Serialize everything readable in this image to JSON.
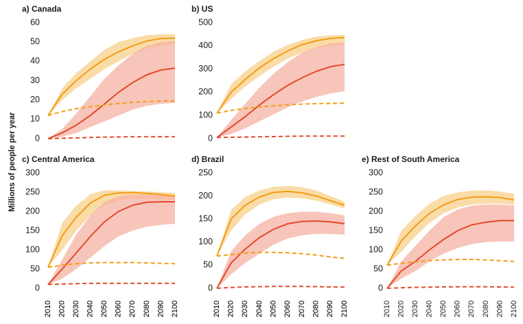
{
  "ylabel": "Millions of people per year",
  "colors": {
    "orange": "#f39c12",
    "orange_band": "#f8d08b",
    "red": "#e14a2a",
    "red_band": "#f6b2a3"
  },
  "chart_data": [
    {
      "type": "line",
      "title": "a) Canada",
      "x": [
        2010,
        2020,
        2030,
        2040,
        2050,
        2060,
        2070,
        2080,
        2090,
        2100
      ],
      "ylim": [
        0,
        60
      ],
      "yticks": [
        0,
        10,
        20,
        30,
        40,
        50,
        60
      ],
      "series": [
        {
          "style": "orange_solid",
          "values": [
            12,
            23,
            30,
            36,
            41,
            45,
            48,
            50.5,
            51.8,
            52
          ],
          "band_lo": [
            12,
            20,
            26,
            31,
            36,
            40,
            44,
            46.5,
            48,
            49
          ],
          "band_hi": [
            12,
            26,
            34,
            40,
            46,
            50,
            52,
            53.5,
            54,
            54
          ]
        },
        {
          "style": "red_solid",
          "values": [
            0,
            3,
            7,
            12,
            18,
            24,
            29,
            33,
            35.5,
            36.5
          ],
          "band_lo": [
            0,
            1,
            3,
            6,
            9,
            12,
            15,
            17,
            18,
            18.5
          ],
          "band_hi": [
            0,
            5,
            13,
            22,
            31,
            38,
            44,
            48,
            50,
            50.5
          ]
        },
        {
          "style": "orange_dashed",
          "values": [
            12,
            14,
            15.5,
            16.5,
            17.5,
            18.2,
            18.8,
            19.2,
            19.5,
            19.5
          ]
        },
        {
          "style": "red_dashed",
          "values": [
            0,
            0.2,
            0.4,
            0.6,
            0.8,
            0.9,
            1,
            1,
            1,
            1
          ]
        }
      ]
    },
    {
      "type": "line",
      "title": "b) US",
      "x": [
        2010,
        2020,
        2030,
        2040,
        2050,
        2060,
        2070,
        2080,
        2090,
        2100
      ],
      "ylim": [
        0,
        500
      ],
      "yticks": [
        0,
        100,
        200,
        300,
        400,
        500
      ],
      "series": [
        {
          "style": "orange_solid",
          "values": [
            110,
            200,
            255,
            305,
            345,
            378,
            405,
            422,
            432,
            436
          ],
          "band_lo": [
            110,
            170,
            225,
            270,
            310,
            345,
            370,
            390,
            400,
            405
          ],
          "band_hi": [
            110,
            235,
            290,
            335,
            375,
            405,
            425,
            440,
            445,
            448
          ]
        },
        {
          "style": "red_solid",
          "values": [
            5,
            50,
            95,
            145,
            190,
            230,
            262,
            290,
            310,
            320
          ],
          "band_lo": [
            5,
            20,
            45,
            75,
            105,
            135,
            160,
            180,
            195,
            205
          ],
          "band_hi": [
            5,
            80,
            150,
            220,
            280,
            330,
            370,
            395,
            410,
            415
          ]
        },
        {
          "style": "orange_dashed",
          "values": [
            110,
            122,
            130,
            137,
            142,
            146,
            149,
            151,
            152,
            153
          ]
        },
        {
          "style": "red_dashed",
          "values": [
            5,
            6,
            7,
            8,
            9,
            10,
            11,
            11,
            11,
            11
          ]
        }
      ]
    },
    {
      "type": "line",
      "title": "c) Central America",
      "x": [
        2010,
        2020,
        2030,
        2040,
        2050,
        2060,
        2070,
        2080,
        2090,
        2100
      ],
      "ylim": [
        0,
        300
      ],
      "yticks": [
        0,
        50,
        100,
        150,
        200,
        250,
        300
      ],
      "series": [
        {
          "style": "orange_solid",
          "values": [
            55,
            137,
            185,
            222,
            242,
            248,
            249,
            247,
            244,
            240
          ],
          "band_lo": [
            55,
            100,
            150,
            190,
            215,
            228,
            233,
            233,
            232,
            230
          ],
          "band_hi": [
            55,
            170,
            215,
            245,
            255,
            255,
            253,
            252,
            250,
            248
          ]
        },
        {
          "style": "red_solid",
          "values": [
            10,
            50,
            92,
            135,
            173,
            200,
            216,
            224,
            225,
            225
          ],
          "band_lo": [
            10,
            25,
            50,
            80,
            110,
            135,
            150,
            160,
            165,
            168
          ],
          "band_hi": [
            10,
            75,
            140,
            190,
            225,
            240,
            244,
            244,
            243,
            242
          ]
        },
        {
          "style": "orange_dashed",
          "values": [
            55,
            60,
            64,
            66,
            67,
            67,
            67,
            66,
            65,
            64
          ]
        },
        {
          "style": "red_dashed",
          "values": [
            10,
            11,
            12,
            13,
            13,
            13,
            13,
            13,
            13,
            13
          ]
        }
      ]
    },
    {
      "type": "line",
      "title": "d) Brazil",
      "x": [
        2010,
        2020,
        2030,
        2040,
        2050,
        2060,
        2070,
        2080,
        2090,
        2100
      ],
      "ylim": [
        0,
        250
      ],
      "yticks": [
        0,
        50,
        100,
        150,
        200,
        250
      ],
      "series": [
        {
          "style": "orange_solid",
          "values": [
            70,
            150,
            180,
            198,
            208,
            210,
            207,
            200,
            190,
            180
          ],
          "band_lo": [
            70,
            125,
            160,
            182,
            193,
            197,
            195,
            190,
            182,
            173
          ],
          "band_hi": [
            70,
            170,
            198,
            212,
            220,
            222,
            219,
            212,
            200,
            188
          ]
        },
        {
          "style": "red_solid",
          "values": [
            0,
            55,
            85,
            110,
            128,
            140,
            145,
            146,
            144,
            140
          ],
          "band_lo": [
            0,
            30,
            55,
            75,
            95,
            108,
            115,
            118,
            118,
            116
          ],
          "band_hi": [
            0,
            80,
            115,
            140,
            155,
            163,
            166,
            166,
            163,
            158
          ]
        },
        {
          "style": "orange_dashed",
          "values": [
            70,
            73,
            76,
            78,
            78,
            77,
            75,
            72,
            68,
            65
          ]
        },
        {
          "style": "red_dashed",
          "values": [
            0,
            2,
            3,
            3.5,
            4,
            4,
            4,
            3.5,
            3,
            2.5
          ]
        }
      ]
    },
    {
      "type": "line",
      "title": "e) Rest of South America",
      "x": [
        2010,
        2020,
        2030,
        2040,
        2050,
        2060,
        2070,
        2080,
        2090,
        2100
      ],
      "ylim": [
        0,
        300
      ],
      "yticks": [
        0,
        50,
        100,
        150,
        200,
        250,
        300
      ],
      "series": [
        {
          "style": "orange_solid",
          "values": [
            60,
            123,
            162,
            195,
            217,
            231,
            237,
            238,
            236,
            230
          ],
          "band_lo": [
            60,
            95,
            135,
            170,
            195,
            210,
            218,
            220,
            220,
            218
          ],
          "band_hi": [
            60,
            150,
            188,
            220,
            240,
            250,
            254,
            255,
            252,
            246
          ]
        },
        {
          "style": "red_solid",
          "values": [
            0,
            45,
            70,
            100,
            127,
            150,
            165,
            172,
            176,
            176
          ],
          "band_lo": [
            0,
            25,
            45,
            70,
            90,
            105,
            115,
            120,
            122,
            122
          ],
          "band_hi": [
            0,
            70,
            110,
            150,
            185,
            205,
            215,
            218,
            218,
            216
          ]
        },
        {
          "style": "orange_dashed",
          "values": [
            60,
            65,
            69,
            72,
            74,
            75,
            75,
            74,
            72,
            70
          ]
        },
        {
          "style": "red_dashed",
          "values": [
            0,
            1.5,
            2.5,
            3,
            3.5,
            4,
            4,
            4,
            3.5,
            3
          ]
        }
      ]
    }
  ]
}
